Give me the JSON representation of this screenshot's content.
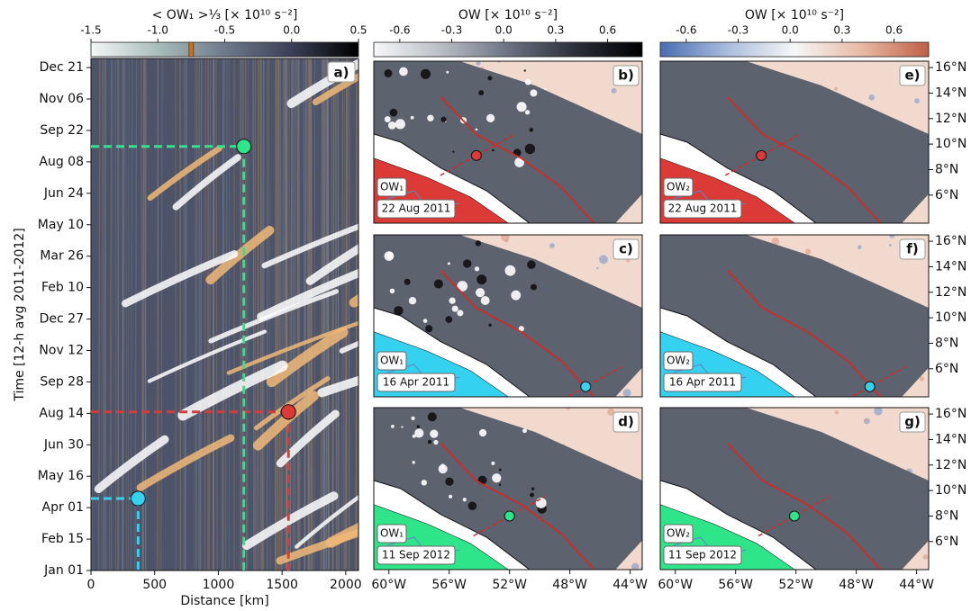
{
  "chart_data": [
    {
      "type": "scatter",
      "panel": "a)",
      "colorbar": {
        "label": "< OW₁ >⅓ [× 10¹⁰ s⁻²]",
        "lim": [
          -1.5,
          0.5
        ],
        "ticks": [
          -1.5,
          {
            "value": -1.0,
            "label": "-1.0"
          },
          -0.5,
          {
            "value": 0.0,
            "label": "0.0"
          },
          0.5
        ],
        "colors": [
          "#f4f7f6",
          "#a9bdbb",
          "#6e7a8c",
          "#3b3f55",
          "#000000"
        ],
        "threshold": -0.75,
        "threshold_color": "#c8731e"
      },
      "xlabel": "Distance [km]",
      "ylabel": "Time [12-h avg 2011-2012]",
      "xlim": [
        0,
        2100
      ],
      "xticks": [
        0,
        500,
        1000,
        1500,
        2000
      ],
      "ylim": [
        0,
        733
      ],
      "yticks": [
        {
          "value": 0,
          "label": "Jan 01"
        },
        {
          "value": 45,
          "label": "Feb 15"
        },
        {
          "value": 90,
          "label": "Apr 01"
        },
        {
          "value": 135,
          "label": "May 16"
        },
        {
          "value": 180,
          "label": "Jun 30"
        },
        {
          "value": 225,
          "label": "Aug 14"
        },
        {
          "value": 270,
          "label": "Sep 28"
        },
        {
          "value": 315,
          "label": "Nov 12"
        },
        {
          "value": 360,
          "label": "Dec 27"
        },
        {
          "value": 405,
          "label": "Feb 10"
        },
        {
          "value": 450,
          "label": "Mar 26"
        },
        {
          "value": 495,
          "label": "May 10"
        },
        {
          "value": 540,
          "label": "Jun 24"
        },
        {
          "value": 585,
          "label": "Aug 08"
        },
        {
          "value": 630,
          "label": "Sep 22"
        },
        {
          "value": 675,
          "label": "Nov 06"
        },
        {
          "value": 720,
          "label": "Dec 21"
        }
      ],
      "x": [
        370,
        1550,
        1200
      ],
      "values": [
        103,
        227,
        607
      ],
      "colors": [
        "#34d2f0",
        "#dc3a36",
        "#2fe58a"
      ]
    },
    {
      "type": "map",
      "panel": "b)",
      "field": "OW₁",
      "date": "22 Aug 2011",
      "color": "#dc3a36",
      "colorbar": {
        "label": "OW [× 10¹⁰ s⁻²]",
        "lim": [
          -0.75,
          0.8
        ],
        "ticks": [
          -0.6,
          -0.3,
          {
            "value": 0.0,
            "label": "0.0"
          },
          0.3,
          0.6
        ],
        "colors": [
          "#f7f7f7",
          "#b9bec6",
          "#6b7282",
          "#2c2f3a",
          "#000000"
        ]
      },
      "xlim": [
        -61,
        -43.2
      ],
      "ylim": [
        3.8,
        16.5
      ],
      "lon": -54.2,
      "lat": 9.1
    },
    {
      "type": "map",
      "panel": "c)",
      "field": "OW₁",
      "date": "16 Apr 2011",
      "color": "#34d2f0",
      "xlim": [
        -61,
        -43.2
      ],
      "ylim": [
        3.8,
        16.5
      ],
      "lon": -46.95,
      "lat": 4.6
    },
    {
      "type": "map",
      "panel": "d)",
      "field": "OW₁",
      "date": "11 Sep 2012",
      "color": "#2fe58a",
      "xlim": [
        -61,
        -43.2
      ],
      "ylim": [
        3.8,
        16.5
      ],
      "lon": -52.0,
      "lat": 8.0,
      "xticks": [
        {
          "value": -60,
          "label": "60°W"
        },
        {
          "value": -56,
          "label": "56°W"
        },
        {
          "value": -52,
          "label": "52°W"
        },
        {
          "value": -48,
          "label": "48°W"
        },
        {
          "value": -44,
          "label": "44°W"
        }
      ]
    },
    {
      "type": "map",
      "panel": "e)",
      "field": "OW₂",
      "date": "22 Aug 2011",
      "color": "#dc3a36",
      "colorbar": {
        "label": "OW [× 10¹⁰ s⁻²]",
        "lim": [
          -0.75,
          0.8
        ],
        "ticks": [
          -0.6,
          -0.3,
          {
            "value": 0.0,
            "label": "0.0"
          },
          0.3,
          0.6
        ],
        "colors": [
          "#4a6db3",
          "#a9bcdc",
          "#f7f7f7",
          "#e8b9a4",
          "#bf5f45"
        ]
      },
      "xlim": [
        -61,
        -43.2
      ],
      "ylim": [
        3.8,
        16.5
      ],
      "lon": -54.3,
      "lat": 9.1,
      "yticks": [
        {
          "value": 6,
          "label": "6°N"
        },
        {
          "value": 8,
          "label": "8°N"
        },
        {
          "value": 10,
          "label": "10°N"
        },
        {
          "value": 12,
          "label": "12°N"
        },
        {
          "value": 14,
          "label": "14°N"
        },
        {
          "value": 16,
          "label": "16°N"
        }
      ]
    },
    {
      "type": "map",
      "panel": "f)",
      "field": "OW₂",
      "date": "16 Apr 2011",
      "color": "#34d2f0",
      "xlim": [
        -61,
        -43.2
      ],
      "ylim": [
        3.8,
        16.5
      ],
      "lon": -47.1,
      "lat": 4.6,
      "yticks": [
        {
          "value": 6,
          "label": "6°N"
        },
        {
          "value": 8,
          "label": "8°N"
        },
        {
          "value": 10,
          "label": "10°N"
        },
        {
          "value": 12,
          "label": "12°N"
        },
        {
          "value": 14,
          "label": "14°N"
        },
        {
          "value": 16,
          "label": "16°N"
        }
      ]
    },
    {
      "type": "map",
      "panel": "g)",
      "field": "OW₂",
      "date": "11 Sep 2012",
      "color": "#2fe58a",
      "xlim": [
        -61,
        -43.2
      ],
      "ylim": [
        3.8,
        16.5
      ],
      "lon": -52.1,
      "lat": 8.0,
      "xticks": [
        {
          "value": -60,
          "label": "60°W"
        },
        {
          "value": -56,
          "label": "56°W"
        },
        {
          "value": -52,
          "label": "52°W"
        },
        {
          "value": -48,
          "label": "48°W"
        },
        {
          "value": -44,
          "label": "44°W"
        }
      ],
      "yticks": [
        {
          "value": 6,
          "label": "6°N"
        },
        {
          "value": 8,
          "label": "8°N"
        },
        {
          "value": 10,
          "label": "10°N"
        },
        {
          "value": 12,
          "label": "12°N"
        },
        {
          "value": 14,
          "label": "14°N"
        },
        {
          "value": 16,
          "label": "16°N"
        }
      ]
    }
  ]
}
